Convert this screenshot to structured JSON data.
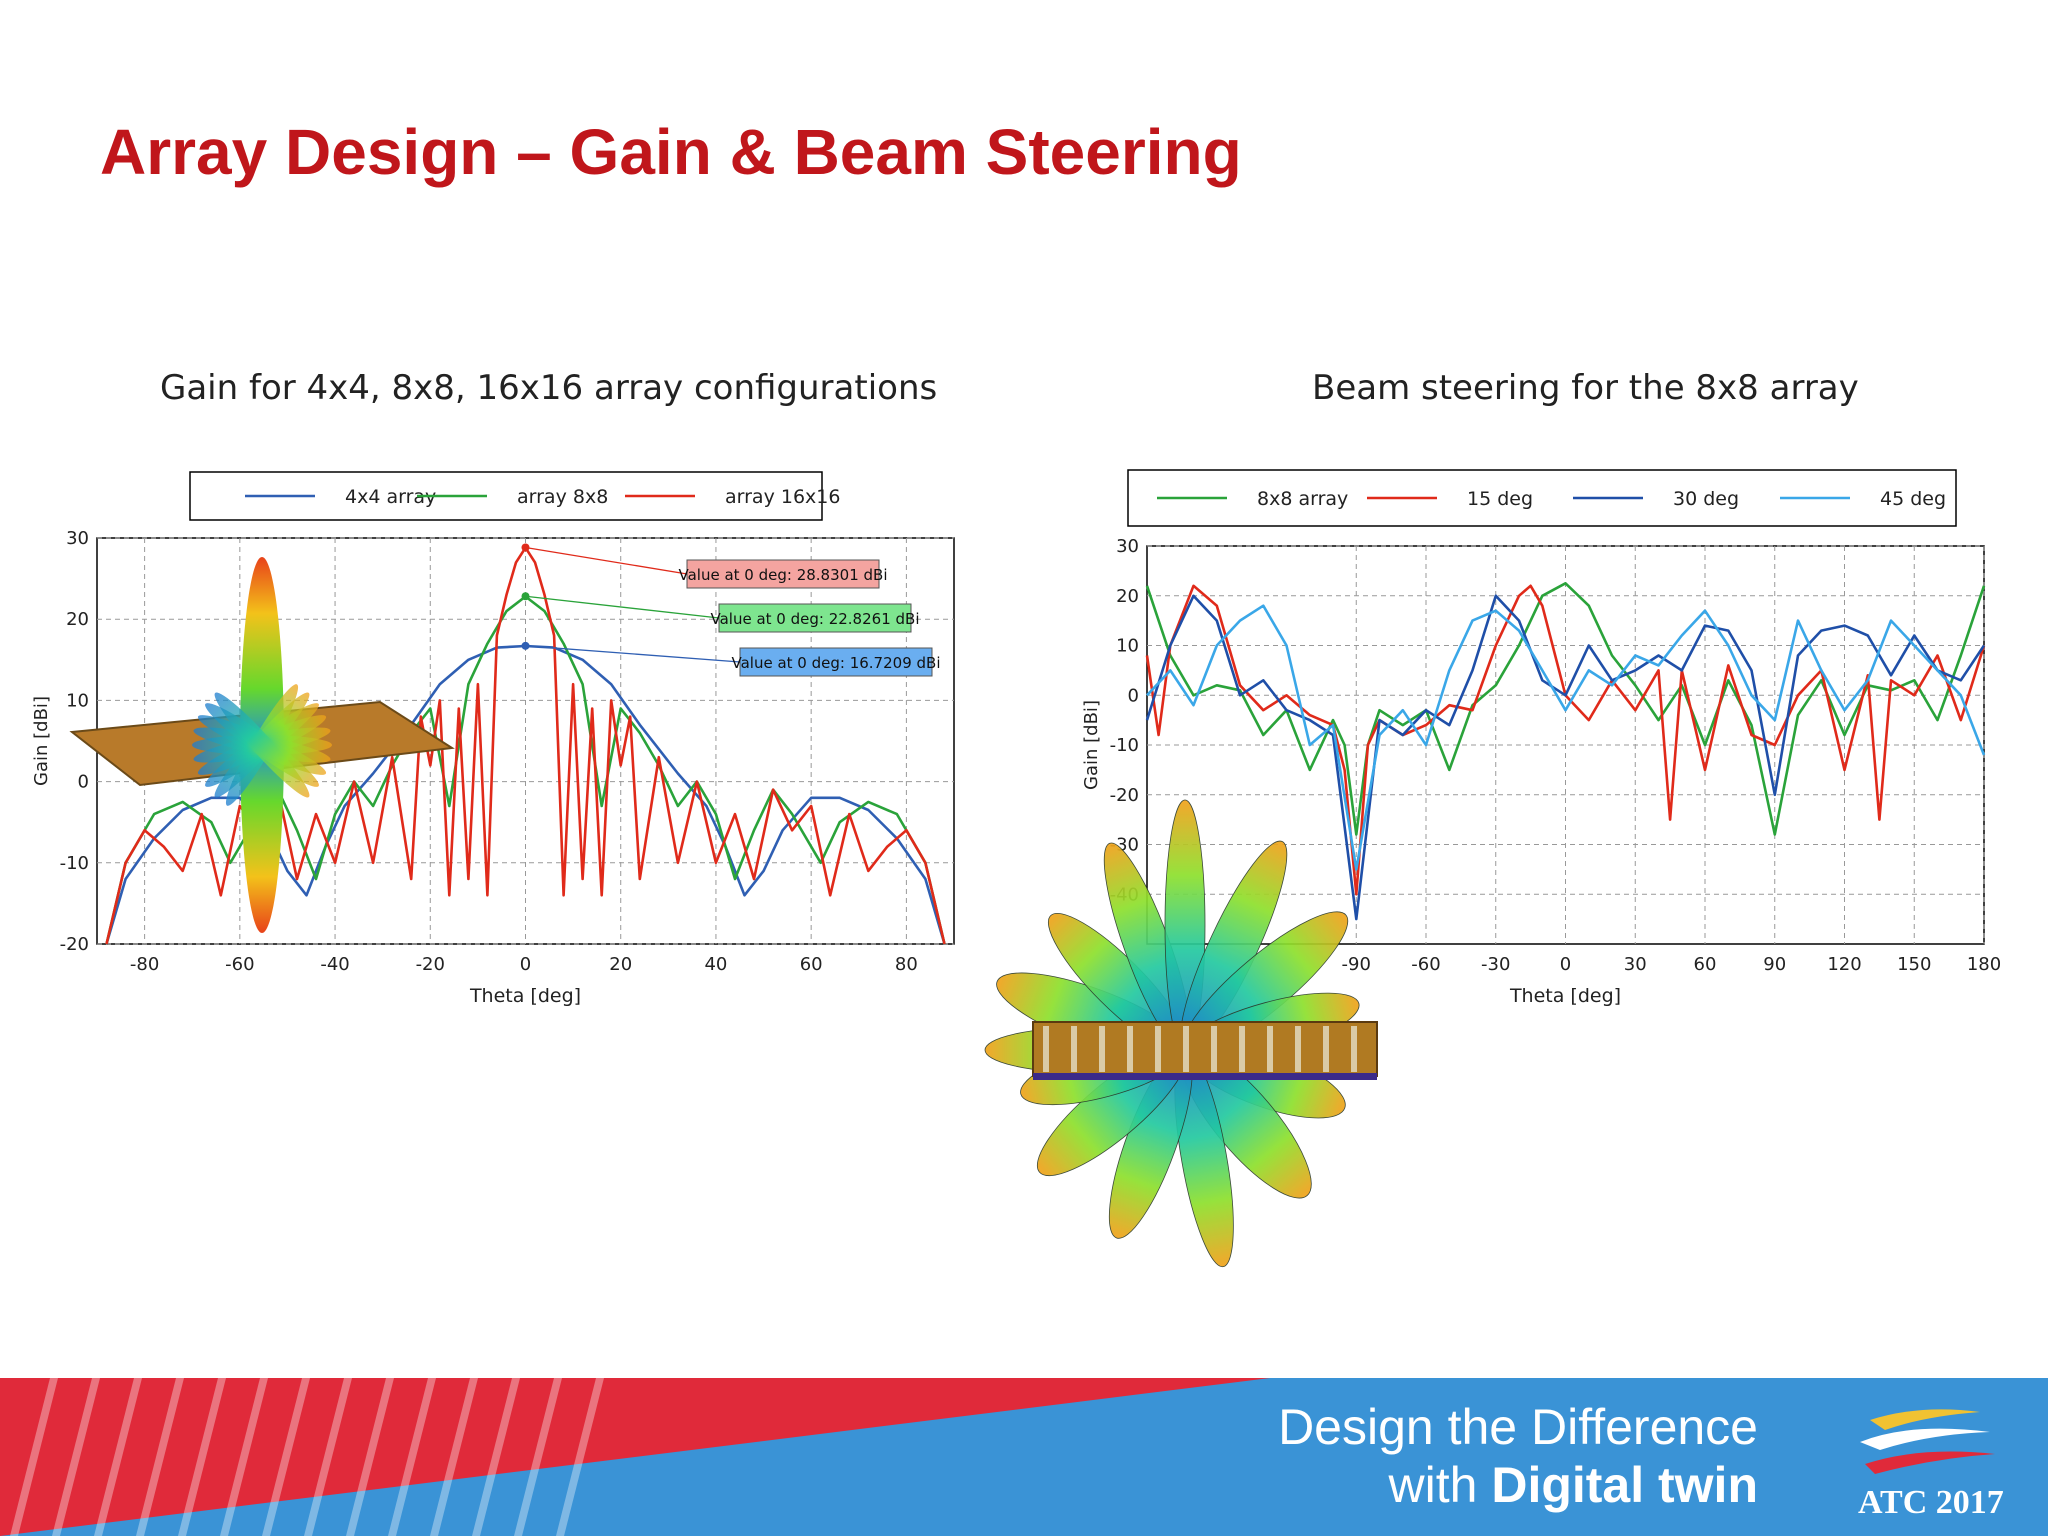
{
  "slide": {
    "title": "Array Design – Gain & Beam Steering",
    "caption_left": "Gain for 4x4, 8x8, 16x16 array configurations",
    "caption_right": "Beam steering for the 8x8 array"
  },
  "footer": {
    "line1": "Design the Difference",
    "line2_prefix": "with ",
    "line2_bold": "Digital twin",
    "logo_text": "ATC 2017",
    "colors": {
      "blue": "#3a93d6",
      "red": "#e02a3a"
    }
  },
  "chart_data": [
    {
      "type": "line",
      "xlabel": "Theta [deg]",
      "ylabel": "Gain [dBi]",
      "xlim": [
        -90,
        90
      ],
      "ylim": [
        -20,
        30
      ],
      "xticks": [
        -80,
        -60,
        -40,
        -20,
        0,
        20,
        40,
        60,
        80
      ],
      "yticks": [
        -20,
        -10,
        0,
        10,
        20,
        30
      ],
      "grid": true,
      "legend": "top",
      "series": [
        {
          "name": "4x4 array",
          "color": "#2f5fb3",
          "x": [
            -88,
            -84,
            -78,
            -72,
            -66,
            -60,
            -54,
            -50,
            -46,
            -42,
            -38,
            -32,
            -28,
            -24,
            -18,
            -12,
            -6,
            0,
            6,
            12,
            18,
            24,
            28,
            32,
            38,
            42,
            46,
            50,
            54,
            60,
            66,
            72,
            78,
            84,
            88
          ],
          "y": [
            -20,
            -12,
            -7,
            -3.5,
            -2,
            -2,
            -6,
            -11,
            -14,
            -8,
            -3,
            1,
            4,
            7,
            12,
            15,
            16.5,
            16.7,
            16.5,
            15,
            12,
            7,
            4,
            1,
            -3,
            -8,
            -14,
            -11,
            -6,
            -2,
            -2,
            -3.5,
            -7,
            -12,
            -20
          ]
        },
        {
          "name": "array 8x8",
          "color": "#2aa33a",
          "x": [
            -88,
            -84,
            -78,
            -72,
            -66,
            -62,
            -56,
            -52,
            -48,
            -44,
            -40,
            -36,
            -32,
            -28,
            -24,
            -20,
            -16,
            -12,
            -8,
            -4,
            0,
            4,
            8,
            12,
            16,
            20,
            24,
            28,
            32,
            36,
            40,
            44,
            48,
            52,
            56,
            62,
            66,
            72,
            78,
            84,
            88
          ],
          "y": [
            -20,
            -10,
            -4,
            -2.5,
            -5,
            -10,
            -4,
            -1,
            -6,
            -12,
            -4,
            0,
            -3,
            2,
            6,
            9,
            -3,
            12,
            17,
            21,
            22.8,
            21,
            17,
            12,
            -3,
            9,
            6,
            2,
            -3,
            0,
            -4,
            -12,
            -6,
            -1,
            -4,
            -10,
            -5,
            -2.5,
            -4,
            -10,
            -20
          ]
        },
        {
          "name": "array 16x16",
          "color": "#e02a1a",
          "x": [
            -88,
            -84,
            -80,
            -76,
            -72,
            -68,
            -64,
            -60,
            -56,
            -52,
            -48,
            -44,
            -40,
            -36,
            -32,
            -28,
            -24,
            -22,
            -20,
            -18,
            -16,
            -14,
            -12,
            -10,
            -8,
            -6,
            -4,
            -2,
            0,
            2,
            4,
            6,
            8,
            10,
            12,
            14,
            16,
            18,
            20,
            22,
            24,
            28,
            32,
            36,
            40,
            44,
            48,
            52,
            56,
            60,
            64,
            68,
            72,
            76,
            80,
            84,
            88
          ],
          "y": [
            -20,
            -10,
            -6,
            -8,
            -11,
            -4,
            -14,
            -3,
            -6,
            -1,
            -12,
            -4,
            -10,
            0,
            -10,
            3,
            -12,
            8,
            2,
            10,
            -14,
            9,
            -12,
            12,
            -14,
            18,
            23,
            27,
            28.8,
            27,
            23,
            18,
            -14,
            12,
            -12,
            9,
            -14,
            10,
            2,
            8,
            -12,
            3,
            -10,
            0,
            -10,
            -4,
            -12,
            -1,
            -6,
            -3,
            -14,
            -4,
            -11,
            -8,
            -6,
            -10,
            -20
          ]
        }
      ],
      "annotations": [
        {
          "text": "Value at 0 deg: 28.8301 dBi",
          "x": 0,
          "y": 28.8301,
          "color": "#f4a4a0"
        },
        {
          "text": "Value at 0 deg: 22.8261 dBi",
          "x": 0,
          "y": 22.8261,
          "color": "#7ee58f"
        },
        {
          "text": "Value at 0 deg: 16.7209 dBi",
          "x": 0,
          "y": 16.7209,
          "color": "#6aaef0"
        }
      ]
    },
    {
      "type": "line",
      "xlabel": "Theta [deg]",
      "ylabel": "Gain [dBi]",
      "xlim": [
        -180,
        180
      ],
      "ylim": [
        -50,
        30
      ],
      "xticks": [
        -90,
        -60,
        -30,
        0,
        30,
        60,
        90,
        120,
        150,
        180
      ],
      "yticks": [
        -40,
        -30,
        -20,
        -10,
        0,
        10,
        20,
        30
      ],
      "grid": true,
      "legend": "top",
      "series": [
        {
          "name": "8x8 array",
          "color": "#2aa33a",
          "x": [
            -180,
            -170,
            -160,
            -150,
            -140,
            -130,
            -120,
            -110,
            -100,
            -95,
            -90,
            -85,
            -80,
            -70,
            -60,
            -50,
            -40,
            -30,
            -20,
            -10,
            0,
            10,
            20,
            30,
            40,
            50,
            60,
            70,
            80,
            90,
            100,
            110,
            120,
            130,
            140,
            150,
            160,
            170,
            180
          ],
          "y": [
            22,
            8,
            0,
            2,
            1,
            -8,
            -3,
            -15,
            -5,
            -10,
            -28,
            -10,
            -3,
            -6,
            -3,
            -15,
            -2,
            2,
            10,
            20,
            22.5,
            18,
            8,
            2,
            -5,
            2,
            -10,
            3,
            -6,
            -28,
            -4,
            3,
            -8,
            2,
            1,
            3,
            -5,
            8,
            22
          ]
        },
        {
          "name": "15 deg",
          "color": "#e02a1a",
          "x": [
            -180,
            -175,
            -170,
            -160,
            -150,
            -140,
            -130,
            -120,
            -110,
            -100,
            -95,
            -90,
            -85,
            -80,
            -70,
            -60,
            -50,
            -40,
            -30,
            -20,
            -15,
            -10,
            0,
            10,
            20,
            30,
            40,
            45,
            50,
            60,
            70,
            80,
            90,
            100,
            110,
            120,
            130,
            135,
            140,
            150,
            160,
            170,
            180
          ],
          "y": [
            8,
            -8,
            10,
            22,
            18,
            2,
            -3,
            0,
            -4,
            -6,
            -15,
            -40,
            -10,
            -5,
            -8,
            -6,
            -2,
            -3,
            10,
            20,
            22,
            18,
            0,
            -5,
            3,
            -3,
            5,
            -25,
            5,
            -15,
            6,
            -8,
            -10,
            0,
            5,
            -15,
            4,
            -25,
            3,
            0,
            8,
            -5,
            10
          ]
        },
        {
          "name": "30 deg",
          "color": "#1f4fa8",
          "x": [
            -180,
            -170,
            -160,
            -150,
            -140,
            -130,
            -120,
            -110,
            -100,
            -90,
            -80,
            -70,
            -60,
            -50,
            -40,
            -30,
            -20,
            -10,
            0,
            10,
            20,
            30,
            40,
            50,
            60,
            70,
            80,
            90,
            100,
            110,
            120,
            130,
            140,
            150,
            160,
            170,
            180
          ],
          "y": [
            -5,
            10,
            20,
            15,
            0,
            3,
            -3,
            -5,
            -8,
            -45,
            -5,
            -8,
            -3,
            -6,
            5,
            20,
            15,
            3,
            0,
            10,
            3,
            5,
            8,
            5,
            14,
            13,
            5,
            -20,
            8,
            13,
            14,
            12,
            4,
            12,
            5,
            3,
            10
          ]
        },
        {
          "name": "45 deg",
          "color": "#3aa7e8",
          "x": [
            -180,
            -170,
            -160,
            -150,
            -140,
            -130,
            -120,
            -110,
            -100,
            -90,
            -80,
            -70,
            -60,
            -50,
            -40,
            -30,
            -20,
            -10,
            0,
            10,
            20,
            30,
            40,
            50,
            60,
            70,
            80,
            90,
            100,
            110,
            120,
            130,
            140,
            150,
            160,
            170,
            180
          ],
          "y": [
            0,
            5,
            -2,
            10,
            15,
            18,
            10,
            -10,
            -6,
            -35,
            -8,
            -3,
            -10,
            5,
            15,
            17,
            13,
            5,
            -3,
            5,
            2,
            8,
            6,
            12,
            17,
            10,
            0,
            -5,
            15,
            5,
            -3,
            3,
            15,
            10,
            5,
            0,
            -12
          ]
        }
      ]
    }
  ]
}
